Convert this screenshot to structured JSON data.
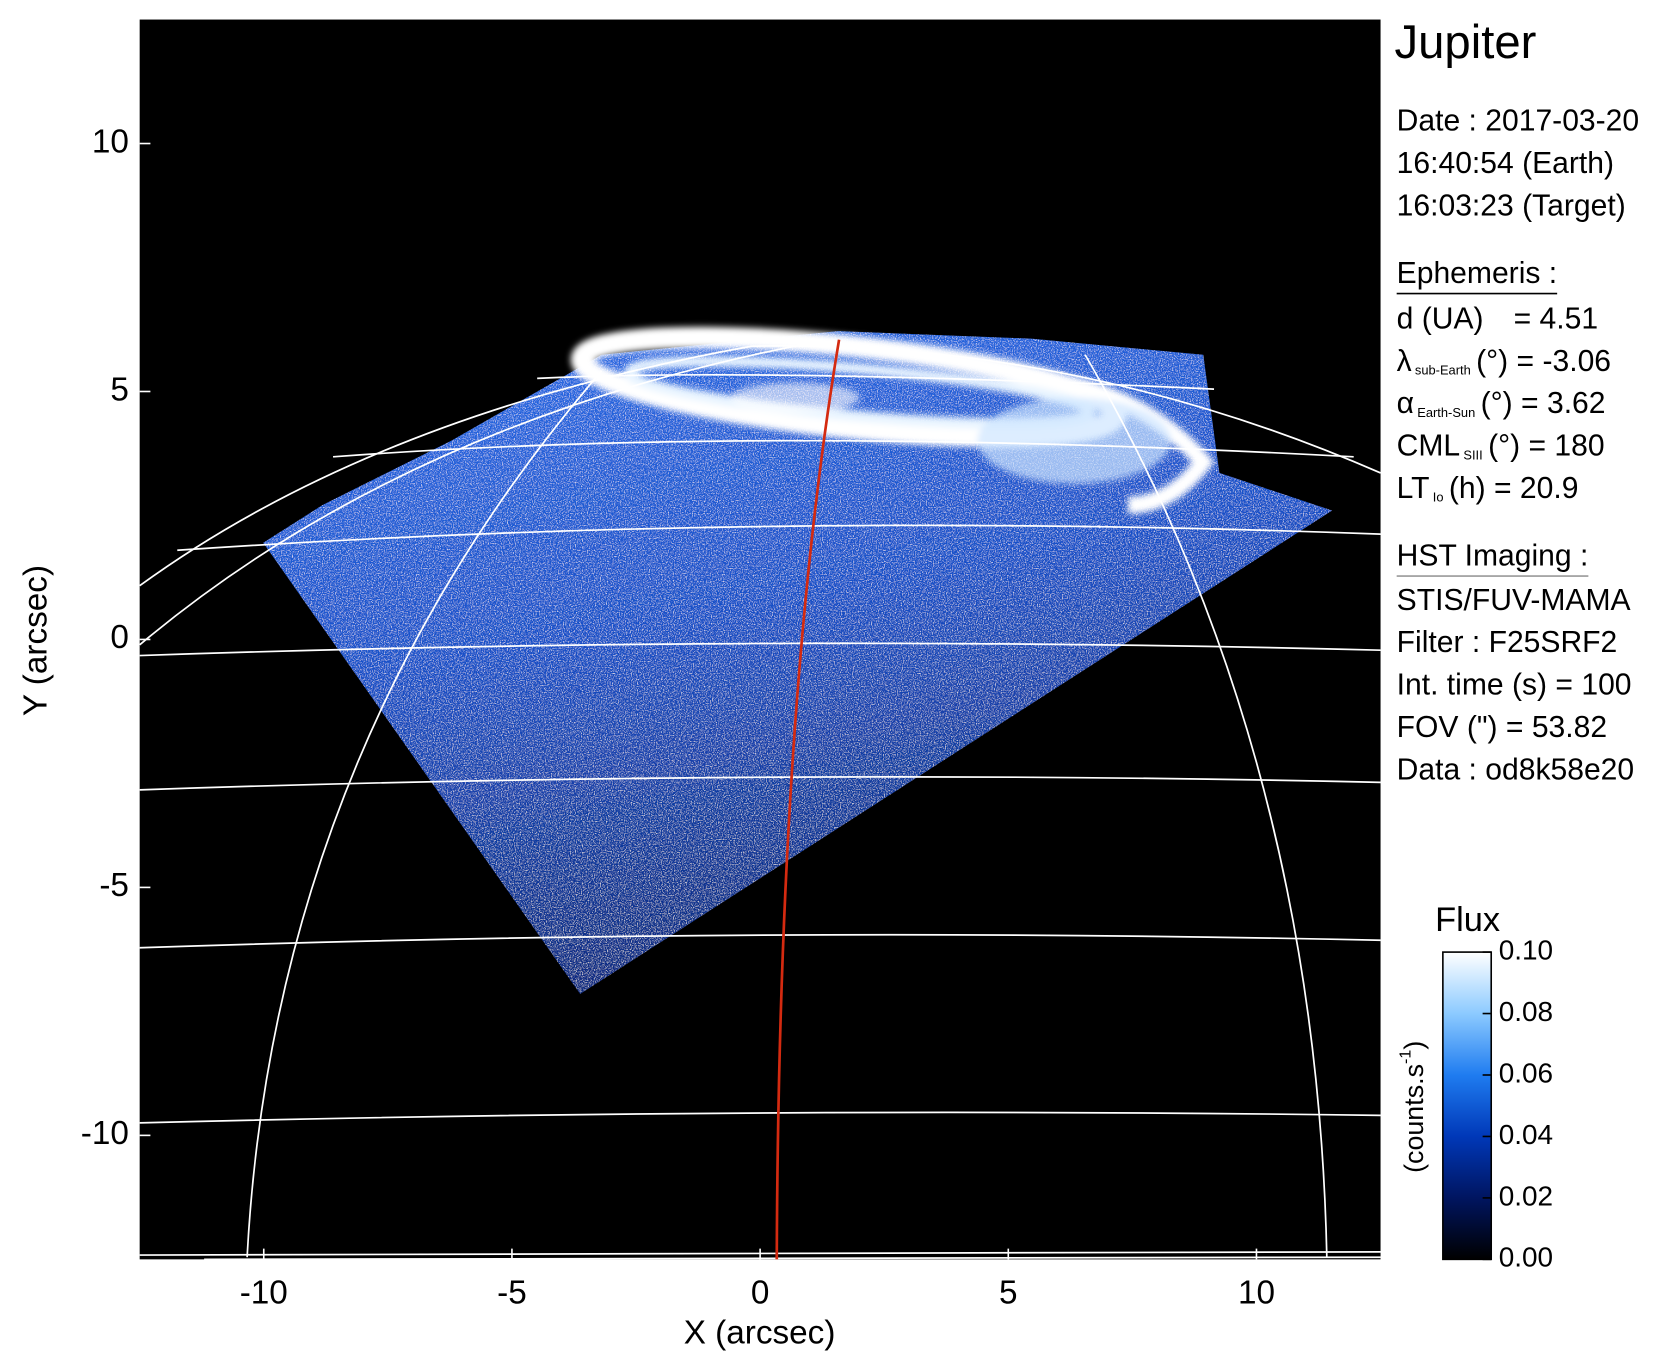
{
  "chart_data": {
    "type": "image",
    "title": "Jupiter",
    "xlabel": "X (arcsec)",
    "ylabel": "Y (arcsec)",
    "xlim": [
      -12.5,
      12.5
    ],
    "ylim": [
      -12.5,
      12.5
    ],
    "xticks": [
      -10,
      -5,
      0,
      5,
      10
    ],
    "yticks": [
      -10,
      -5,
      0,
      5,
      10
    ],
    "info": {
      "date": [
        "Date : 2017-03-20",
        "16:40:54 (Earth)",
        "16:03:23 (Target)"
      ],
      "ephemeris_title": "Ephemeris :",
      "ephemeris": [
        {
          "symbol": "d (UA)",
          "text": "= 4.51"
        },
        {
          "symbol": "λ",
          "sub": "sub-Earth",
          "text": "(°) = -3.06"
        },
        {
          "symbol": "α",
          "sub": "Earth-Sun",
          "text": "(°) = 3.62"
        },
        {
          "symbol": "CML",
          "sub": "SIII",
          "text": "(°) = 180"
        },
        {
          "symbol": "LT",
          "sub": "Io",
          "text": "(h) = 20.9"
        }
      ],
      "imaging_title": "HST Imaging :",
      "imaging": [
        "STIS/FUV-MAMA",
        "Filter : F25SRF2",
        "Int. time (s) = 100",
        "FOV (\") = 53.82",
        "Data : od8k58e20"
      ]
    },
    "colorbar": {
      "title": "Flux",
      "label": {
        "text": "(counts.s",
        "sup": "-1",
        "end": ")"
      },
      "clim": [
        0,
        0.1
      ],
      "ticks": [
        {
          "value": 0,
          "label": "0.00"
        },
        0.02,
        0.04,
        0.06,
        0.08,
        {
          "value": 0.1,
          "label": "0.10"
        }
      ],
      "colors": [
        "#000000",
        "#001560",
        "#0038b8",
        "#1f7cf0",
        "#8ccaff",
        "#ffffff"
      ]
    }
  }
}
